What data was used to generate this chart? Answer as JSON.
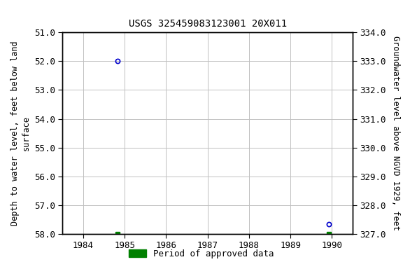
{
  "title": "USGS 325459083123001 20X011",
  "ylabel_left": "Depth to water level, feet below land\nsurface",
  "ylabel_right": "Groundwater level above NGVD 1929, feet",
  "ylim_left": [
    51.0,
    58.0
  ],
  "ylim_right": [
    334.0,
    327.0
  ],
  "xlim": [
    1983.5,
    1990.5
  ],
  "yticks_left": [
    51.0,
    52.0,
    53.0,
    54.0,
    55.0,
    56.0,
    57.0,
    58.0
  ],
  "yticks_right": [
    334.0,
    333.0,
    332.0,
    331.0,
    330.0,
    329.0,
    328.0,
    327.0
  ],
  "xticks": [
    1984,
    1985,
    1986,
    1987,
    1988,
    1989,
    1990
  ],
  "blue_points_x": [
    1984.83,
    1989.92
  ],
  "blue_points_y": [
    52.0,
    57.65
  ],
  "green_points_x": [
    1984.83,
    1989.92
  ],
  "green_points_y": [
    58.0,
    58.0
  ],
  "blue_color": "#0000cc",
  "green_color": "#008000",
  "bg_color": "#ffffff",
  "grid_color": "#c0c0c0",
  "legend_label": "Period of approved data",
  "title_fontsize": 10,
  "axis_label_fontsize": 8.5,
  "tick_fontsize": 9
}
